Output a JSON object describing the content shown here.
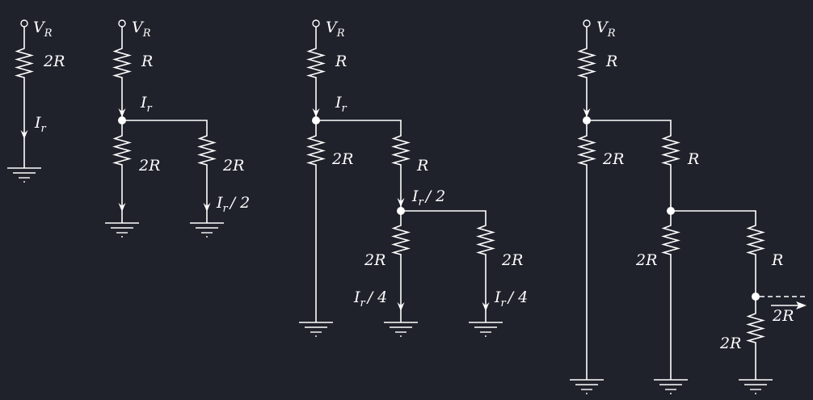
{
  "circuit1": {
    "vr": "V",
    "vr_sub": "R",
    "r1": "2R",
    "i": "I",
    "i_sub": "r"
  },
  "circuit2": {
    "vr": "V",
    "vr_sub": "R",
    "r_top": "R",
    "i_top": "I",
    "i_top_sub": "r",
    "r_left": "2R",
    "r_right": "2R",
    "i_right": "I",
    "i_right_sub": "r",
    "i_right_suffix": "/ 2"
  },
  "circuit3": {
    "vr": "V",
    "vr_sub": "R",
    "r_top": "R",
    "i_top": "I",
    "i_top_sub": "r",
    "r_left": "2R",
    "r_mid": "R",
    "i_mid": "I",
    "i_mid_sub": "r",
    "i_mid_suffix": "/ 2",
    "r_low_left": "2R",
    "r_low_right": "2R",
    "i_low_left": "I",
    "i_low_left_sub": "r",
    "i_low_left_suffix": "/ 4",
    "i_low_right": "I",
    "i_low_right_sub": "r",
    "i_low_right_suffix": "/ 4"
  },
  "circuit4": {
    "vr": "V",
    "vr_sub": "R",
    "r_top": "R",
    "r_left": "2R",
    "r_mid": "R",
    "r_low_left": "2R",
    "r_low_mid": "R",
    "r_bottom": "2R",
    "r_continue": "2R"
  },
  "colors": {
    "background": "#1f222b",
    "line": "#ffffff"
  }
}
